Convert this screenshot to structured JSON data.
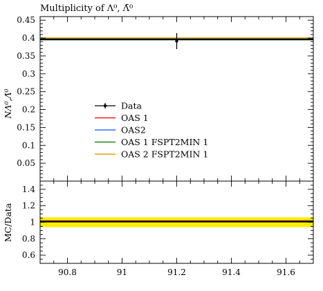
{
  "chart_data": [
    {
      "type": "line",
      "title": "Multiplicity of Λ⁰, Λ̄⁰",
      "ylabel": "NΛ⁰,Λ̄⁰",
      "xlim": [
        90.7,
        91.7
      ],
      "ylim": [
        0.0,
        0.46
      ],
      "y_ticks": [
        0.05,
        0.1,
        0.15,
        0.2,
        0.25,
        0.3,
        0.35,
        0.4,
        0.45
      ],
      "y_tick_labels": [
        "0.05",
        "0.1",
        "0.15",
        "0.2",
        "0.25",
        "0.3",
        "0.35",
        "0.4",
        "0.45"
      ],
      "legend_position": "center-left",
      "data": {
        "name": "Data",
        "x": 91.2,
        "y": 0.3915,
        "yerr": 0.0225,
        "color": "#000000"
      },
      "series": [
        {
          "name": "OAS 1",
          "y": 0.3995,
          "color": "#e41a1c"
        },
        {
          "name": "OAS2",
          "y": 0.3985,
          "color": "#2d6cff"
        },
        {
          "name": "OAS 1 FSPT2MIN 1",
          "y": 0.398,
          "color": "#1a8a1a"
        },
        {
          "name": "OAS 2 FSPT2MIN 1",
          "y": 0.4005,
          "color": "#ff9900"
        }
      ],
      "mc_line": {
        "y": 0.396,
        "color": "#000000"
      }
    },
    {
      "type": "line",
      "ylabel": "MC/Data",
      "xlim": [
        90.7,
        91.7
      ],
      "ylim": [
        0.5,
        1.5
      ],
      "y_ticks": [
        0.6,
        0.8,
        1.0,
        1.2,
        1.4
      ],
      "y_tick_labels": [
        "0.6",
        "0.8",
        "1",
        "1.2",
        "1.4"
      ],
      "x_ticks": [
        90.8,
        91.0,
        91.2,
        91.4,
        91.6
      ],
      "x_tick_labels": [
        "90.8",
        "91",
        "91.2",
        "91.4",
        "91.6"
      ],
      "band": {
        "low": 0.94,
        "high": 1.06,
        "color": "#ffee00"
      },
      "ratios": [
        {
          "name": "OAS 1",
          "value": 1.02,
          "color": "#e41a1c"
        },
        {
          "name": "OAS2",
          "value": 1.018,
          "color": "#2d6cff"
        },
        {
          "name": "OAS 1 FSPT2MIN 1",
          "value": 1.017,
          "color": "#1a8a1a"
        },
        {
          "name": "OAS 2 FSPT2MIN 1",
          "value": 1.023,
          "color": "#ff9900"
        },
        {
          "name": "MC",
          "value": 1.011,
          "color": "#000000"
        }
      ],
      "reference_line": 1.0
    }
  ]
}
